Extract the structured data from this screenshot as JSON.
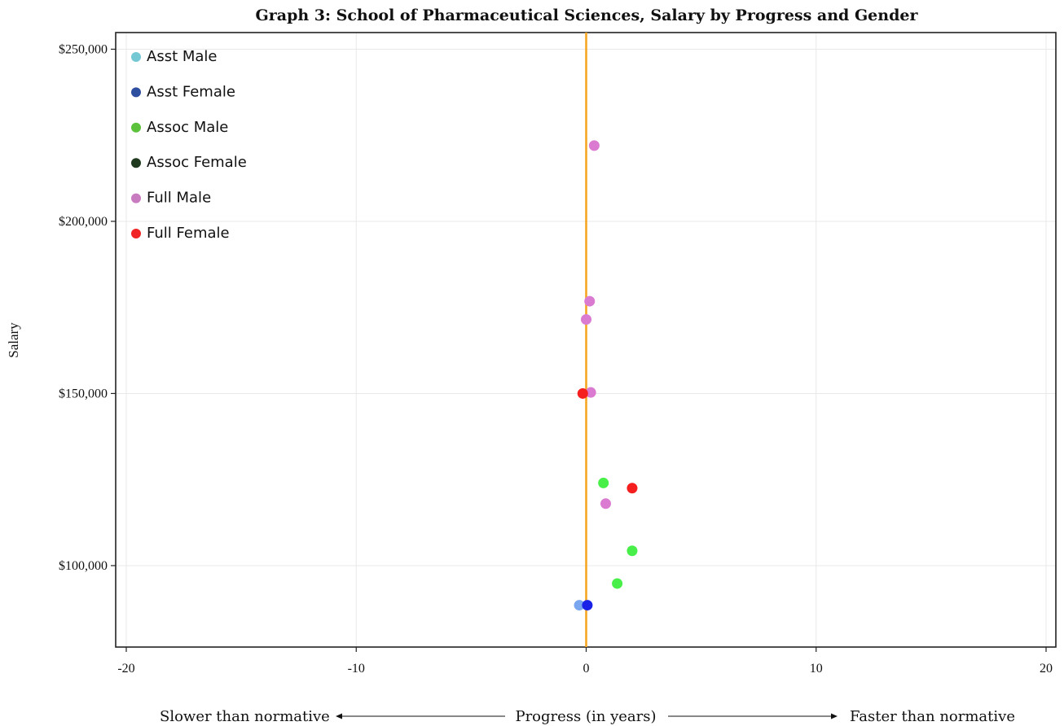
{
  "chart_data": {
    "type": "scatter",
    "title": "Graph 3: School of Pharmaceutical Sciences, Salary by Progress and Gender",
    "ylabel": "Salary",
    "xlim": [
      -20,
      20
    ],
    "ylim": [
      78000,
      252000
    ],
    "x_ticks": [
      "-20",
      "-10",
      "0",
      "10",
      "20"
    ],
    "x_tick_values": [
      -20,
      -10,
      0,
      10,
      20
    ],
    "y_ticks": [
      "$100,000",
      "$150,000",
      "$200,000",
      "$250,000"
    ],
    "y_tick_values": [
      100000,
      150000,
      200000,
      250000
    ],
    "grid": true,
    "legend_position": "top-left",
    "reference_line": {
      "x": 0,
      "color": "#f5a623"
    },
    "series": [
      {
        "name": "Asst Male",
        "color": "#74c8d4",
        "point_color": "#7aa6ef",
        "points": [
          {
            "x": -0.3,
            "y": 88500
          }
        ]
      },
      {
        "name": "Asst Female",
        "color": "#2e4ea0",
        "point_color": "#1a22e8",
        "points": [
          {
            "x": 0.05,
            "y": 88500
          }
        ]
      },
      {
        "name": "Assoc Male",
        "color": "#5cc23c",
        "point_color": "#48ef48",
        "points": [
          {
            "x": 0.75,
            "y": 124000
          },
          {
            "x": 2.0,
            "y": 104300
          },
          {
            "x": 1.35,
            "y": 94800
          }
        ]
      },
      {
        "name": "Assoc Female",
        "color": "#1f3a1f",
        "point_color": "#1f3a1f",
        "points": []
      },
      {
        "name": "Full Male",
        "color": "#c97bbf",
        "point_color": "#da7ad0",
        "points": [
          {
            "x": 0.35,
            "y": 222000
          },
          {
            "x": 0.15,
            "y": 176800
          },
          {
            "x": 0.0,
            "y": 171500
          },
          {
            "x": 0.2,
            "y": 150300
          },
          {
            "x": 0.85,
            "y": 118000
          }
        ]
      },
      {
        "name": "Full Female",
        "color": "#f02424",
        "point_color": "#f51f1f",
        "points": [
          {
            "x": -0.15,
            "y": 150000
          },
          {
            "x": 2.0,
            "y": 122500
          }
        ]
      }
    ]
  },
  "footer": {
    "left": "Slower than normative",
    "center": "Progress (in years)",
    "right": "Faster than normative"
  }
}
